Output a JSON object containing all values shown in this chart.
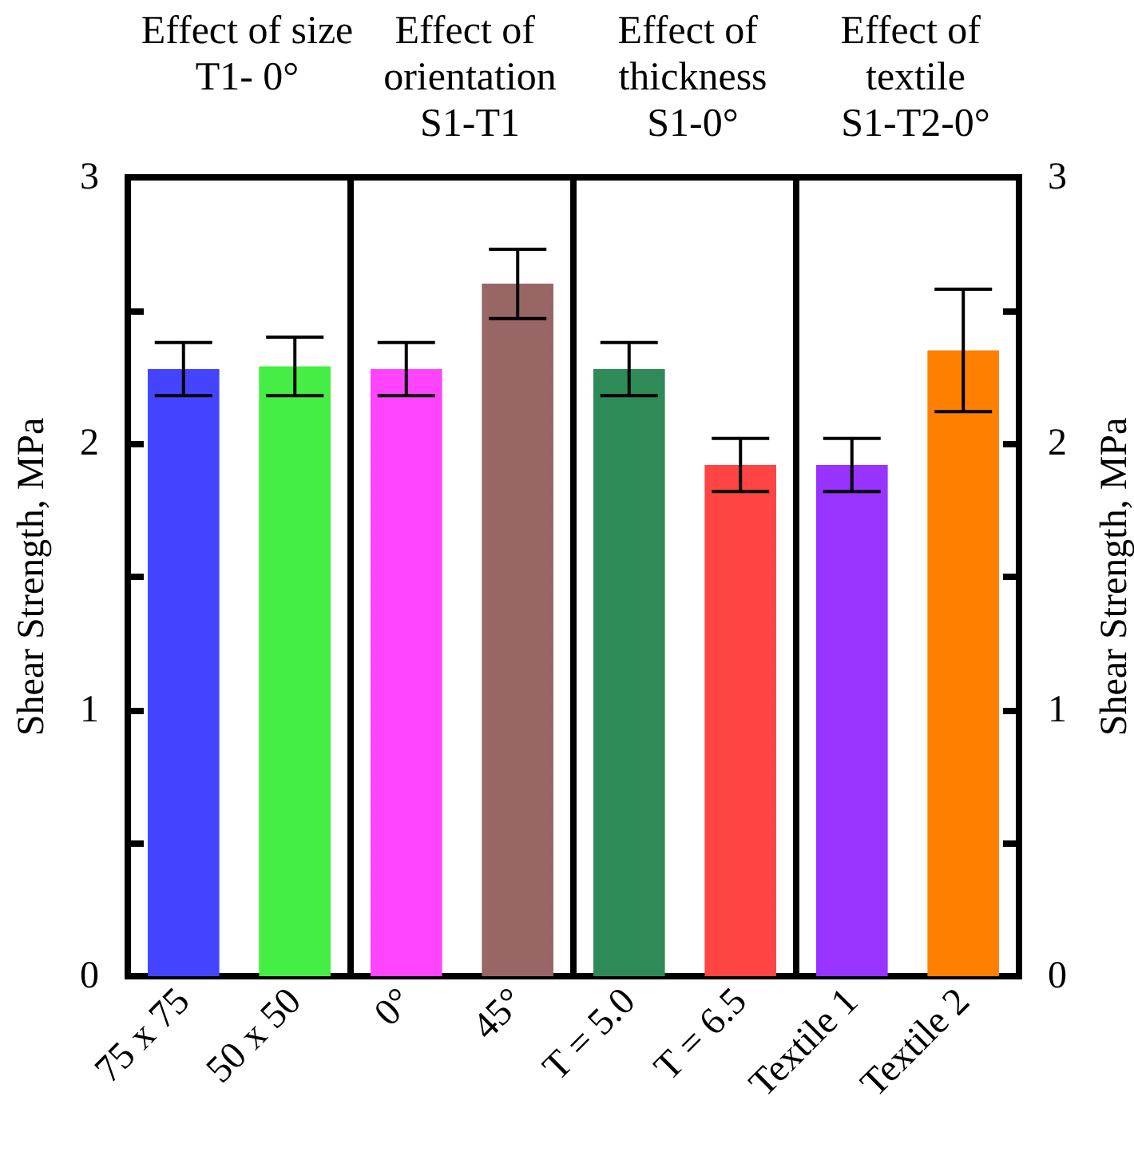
{
  "chart_data": [
    {
      "type": "bar",
      "title": "Effect of size",
      "subtitle": "T1- 0°",
      "categories": [
        "75 x 75",
        "50 x 50"
      ],
      "values": [
        2.28,
        2.29
      ],
      "colors": [
        "#4444ff",
        "#44ee44"
      ],
      "errors": [
        0.1,
        0.11
      ],
      "ylabel": "Shear Strength, MPa",
      "ylim": [
        0,
        3
      ],
      "yticks": [
        0,
        {
          "value": 0.5,
          "label": null
        },
        1,
        {
          "value": 1.5,
          "label": null
        },
        2,
        {
          "value": 2.5,
          "label": null
        },
        3
      ]
    },
    {
      "type": "bar",
      "title": "Effect of orientation",
      "subtitle": "S1-T1",
      "categories": [
        "0°",
        "45°"
      ],
      "values": [
        2.28,
        2.6
      ],
      "colors": [
        "#ff44ff",
        "#996666"
      ],
      "errors": [
        0.1,
        0.13
      ],
      "ylim": [
        0,
        3
      ],
      "tick_labels": "x"
    },
    {
      "type": "bar",
      "title": "Effect of thickness",
      "subtitle": "S1-0°",
      "categories": [
        "T = 5.0",
        "T = 6.5"
      ],
      "values": [
        2.28,
        1.92
      ],
      "colors": [
        "#2e8b57",
        "#ff4444"
      ],
      "errors": [
        0.1,
        0.1
      ],
      "ylim": [
        0,
        3
      ],
      "tick_labels": "x"
    },
    {
      "type": "bar",
      "title": "Effect of textile",
      "subtitle": "S1-T2-0°",
      "categories": [
        "Textile 1",
        "Textile 2"
      ],
      "colors": [
        "#9933ff",
        "#ff8000"
      ],
      "series": [
        {
          "values": [
            1.92,
            2.35
          ],
          "errors": [
            0.1,
            0.23
          ],
          "axis": "y2"
        }
      ],
      "y2label": "Shear Strength, MPa",
      "y2lim": [
        0,
        3
      ],
      "y2ticks": [
        0,
        {
          "value": 0.5,
          "label": null
        },
        1,
        {
          "value": 1.5,
          "label": null
        },
        2,
        {
          "value": 2.5,
          "label": null
        },
        3
      ]
    }
  ]
}
